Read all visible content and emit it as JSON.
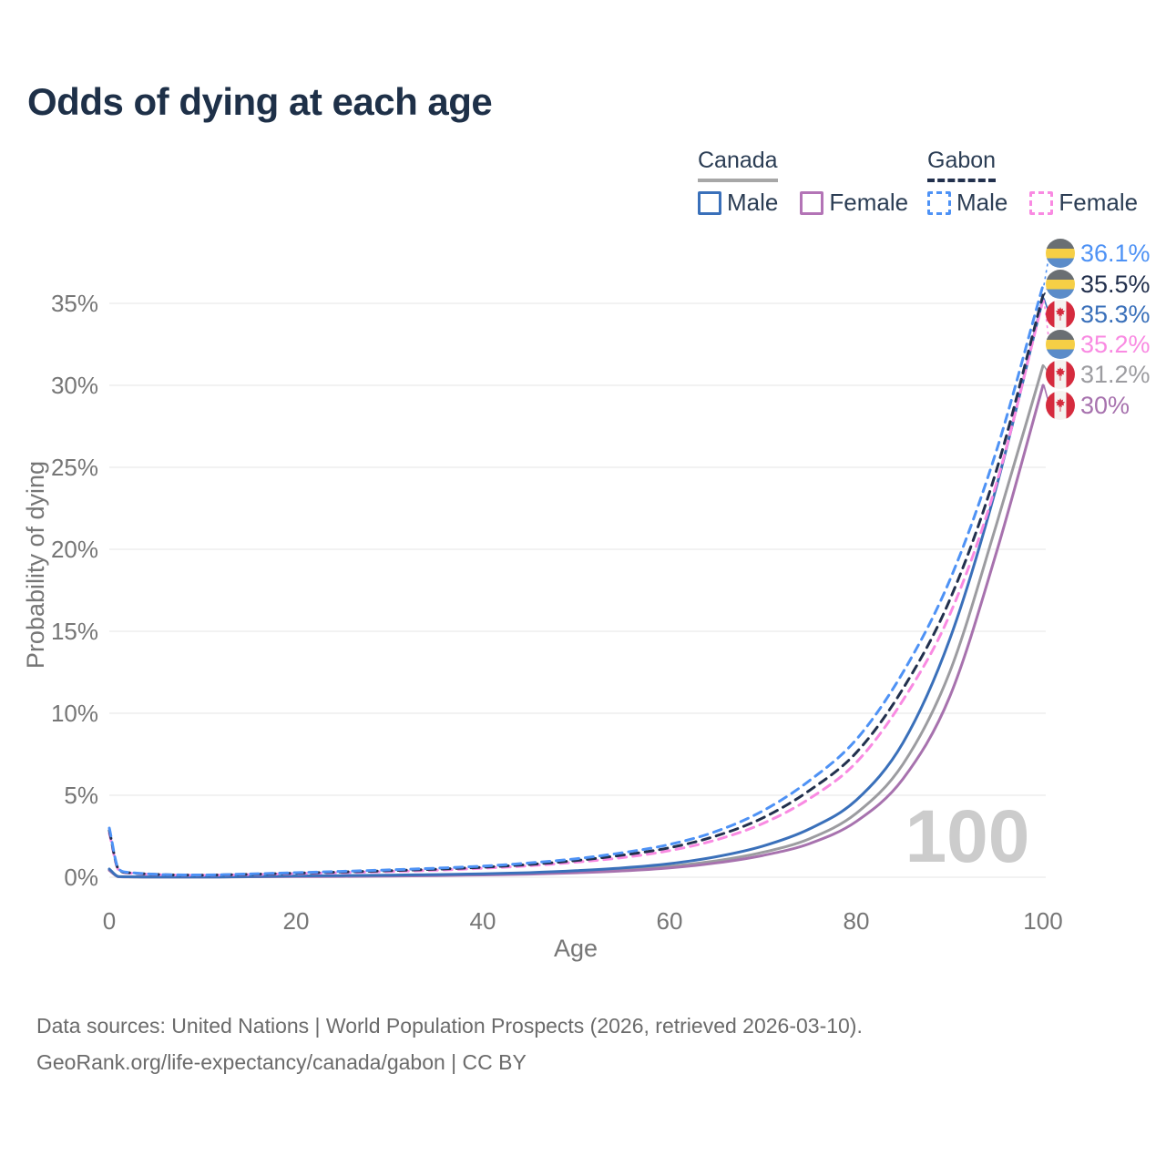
{
  "title": "Odds of dying at each age",
  "legend": {
    "groups": [
      {
        "name": "Canada",
        "underline_style": "solid",
        "underline_color": "#a7a7a7",
        "items": [
          {
            "label": "Male",
            "color": "#3a70ba",
            "dashed": false
          },
          {
            "label": "Female",
            "color": "#b374b6",
            "dashed": false
          }
        ]
      },
      {
        "name": "Gabon",
        "underline_style": "dashed",
        "underline_color": "#22304d",
        "items": [
          {
            "label": "Male",
            "color": "#4e92f5",
            "dashed": true
          },
          {
            "label": "Female",
            "color": "#f98ae2",
            "dashed": true
          }
        ]
      }
    ]
  },
  "chart_data": {
    "type": "line",
    "title": "Odds of dying at each age",
    "xlabel": "Age",
    "ylabel": "Probability of dying",
    "xlim": [
      0,
      100
    ],
    "ylim": [
      0,
      37.5
    ],
    "grid": "horizontal",
    "legend_position": "top-right",
    "x_ticks": [
      0,
      20,
      40,
      60,
      80,
      100
    ],
    "y_tick_values": [
      0,
      5,
      10,
      15,
      20,
      25,
      30,
      35
    ],
    "y_tick_labels": [
      "0%",
      "5%",
      "10%",
      "15%",
      "20%",
      "25%",
      "30%",
      "35%"
    ],
    "age_watermark": "100",
    "x": [
      0,
      1,
      2,
      5,
      10,
      15,
      20,
      25,
      30,
      35,
      40,
      45,
      50,
      55,
      60,
      65,
      70,
      75,
      80,
      85,
      90,
      95,
      100
    ],
    "series": [
      {
        "name": "Canada",
        "country": "Canada",
        "sex": "both",
        "color": "#9c9ca0",
        "dashed": false,
        "values": [
          0.45,
          0.035,
          0.02,
          0.01,
          0.01,
          0.03,
          0.06,
          0.08,
          0.1,
          0.13,
          0.17,
          0.23,
          0.32,
          0.46,
          0.67,
          1.0,
          1.52,
          2.35,
          3.9,
          6.9,
          12.5,
          21.5,
          31.2
        ]
      },
      {
        "name": "Canada Female",
        "country": "Canada",
        "sex": "Female",
        "color": "#a772ae",
        "dashed": false,
        "values": [
          0.42,
          0.03,
          0.02,
          0.01,
          0.01,
          0.025,
          0.04,
          0.05,
          0.07,
          0.1,
          0.14,
          0.19,
          0.27,
          0.39,
          0.57,
          0.87,
          1.33,
          2.05,
          3.4,
          6.0,
          11.0,
          19.8,
          30.0
        ]
      },
      {
        "name": "Canada Male",
        "country": "Canada",
        "sex": "Male",
        "color": "#3a70ba",
        "dashed": false,
        "values": [
          0.5,
          0.04,
          0.025,
          0.012,
          0.012,
          0.045,
          0.08,
          0.1,
          0.13,
          0.16,
          0.21,
          0.28,
          0.4,
          0.57,
          0.83,
          1.25,
          1.9,
          2.95,
          4.7,
          8.2,
          14.5,
          23.8,
          35.3
        ]
      },
      {
        "name": "Gabon Female",
        "country": "Gabon",
        "sex": "Female",
        "color": "#f98ae2",
        "dashed": true,
        "values": [
          2.7,
          0.44,
          0.26,
          0.16,
          0.12,
          0.16,
          0.22,
          0.28,
          0.35,
          0.43,
          0.55,
          0.7,
          0.92,
          1.2,
          1.62,
          2.28,
          3.28,
          4.8,
          7.0,
          10.8,
          16.0,
          24.0,
          35.2
        ]
      },
      {
        "name": "Gabon",
        "country": "Gabon",
        "sex": "both",
        "color": "#22304d",
        "dashed": true,
        "values": [
          2.85,
          0.47,
          0.28,
          0.17,
          0.13,
          0.18,
          0.25,
          0.32,
          0.4,
          0.49,
          0.61,
          0.78,
          1.02,
          1.35,
          1.8,
          2.52,
          3.62,
          5.3,
          7.6,
          11.5,
          16.9,
          24.8,
          35.5
        ]
      },
      {
        "name": "Gabon Male",
        "country": "Gabon",
        "sex": "Male",
        "color": "#4e92f5",
        "dashed": true,
        "values": [
          3.0,
          0.5,
          0.3,
          0.18,
          0.14,
          0.2,
          0.28,
          0.36,
          0.45,
          0.55,
          0.68,
          0.87,
          1.13,
          1.5,
          2.0,
          2.8,
          4.05,
          5.9,
          8.4,
          12.5,
          18.1,
          26.0,
          36.1
        ]
      }
    ],
    "labels": [
      {
        "flag": "gabon",
        "series": "Gabon Male",
        "value": "36.1%",
        "end": 36.1,
        "color": "#4e92f5",
        "dashed": true
      },
      {
        "flag": "gabon",
        "series": "Gabon",
        "value": "35.5%",
        "end": 35.5,
        "color": "#22304d",
        "dashed": true
      },
      {
        "flag": "canada",
        "series": "Canada Male",
        "value": "35.3%",
        "end": 35.3,
        "color": "#3a70ba",
        "dashed": false
      },
      {
        "flag": "gabon",
        "series": "Gabon Female",
        "value": "35.2%",
        "end": 35.2,
        "color": "#f98ae2",
        "dashed": true
      },
      {
        "flag": "canada",
        "series": "Canada",
        "value": "31.2%",
        "end": 31.2,
        "color": "#9c9ca0",
        "dashed": false
      },
      {
        "flag": "canada",
        "series": "Canada Female",
        "value": "30%",
        "end": 30.0,
        "color": "#a772ae",
        "dashed": false
      }
    ]
  },
  "icons": {
    "gabon_flag": {
      "stripes": [
        "#6a6f73",
        "#f6cf45",
        "#5b8cc9"
      ]
    },
    "canada_flag": {
      "red": "#d52b3e",
      "white": "#f5f3f0"
    }
  },
  "style_colors": {
    "title": "#1e3048",
    "axis_text": "#767676",
    "gridline": "#ededed",
    "watermark": "#cccccc",
    "footer": "#6b6b6b"
  },
  "footer": {
    "line1": "Data sources: United Nations | World Population Prospects (2026, retrieved 2026-03-10).",
    "line2": "GeoRank.org/life-expectancy/canada/gabon | CC BY"
  }
}
